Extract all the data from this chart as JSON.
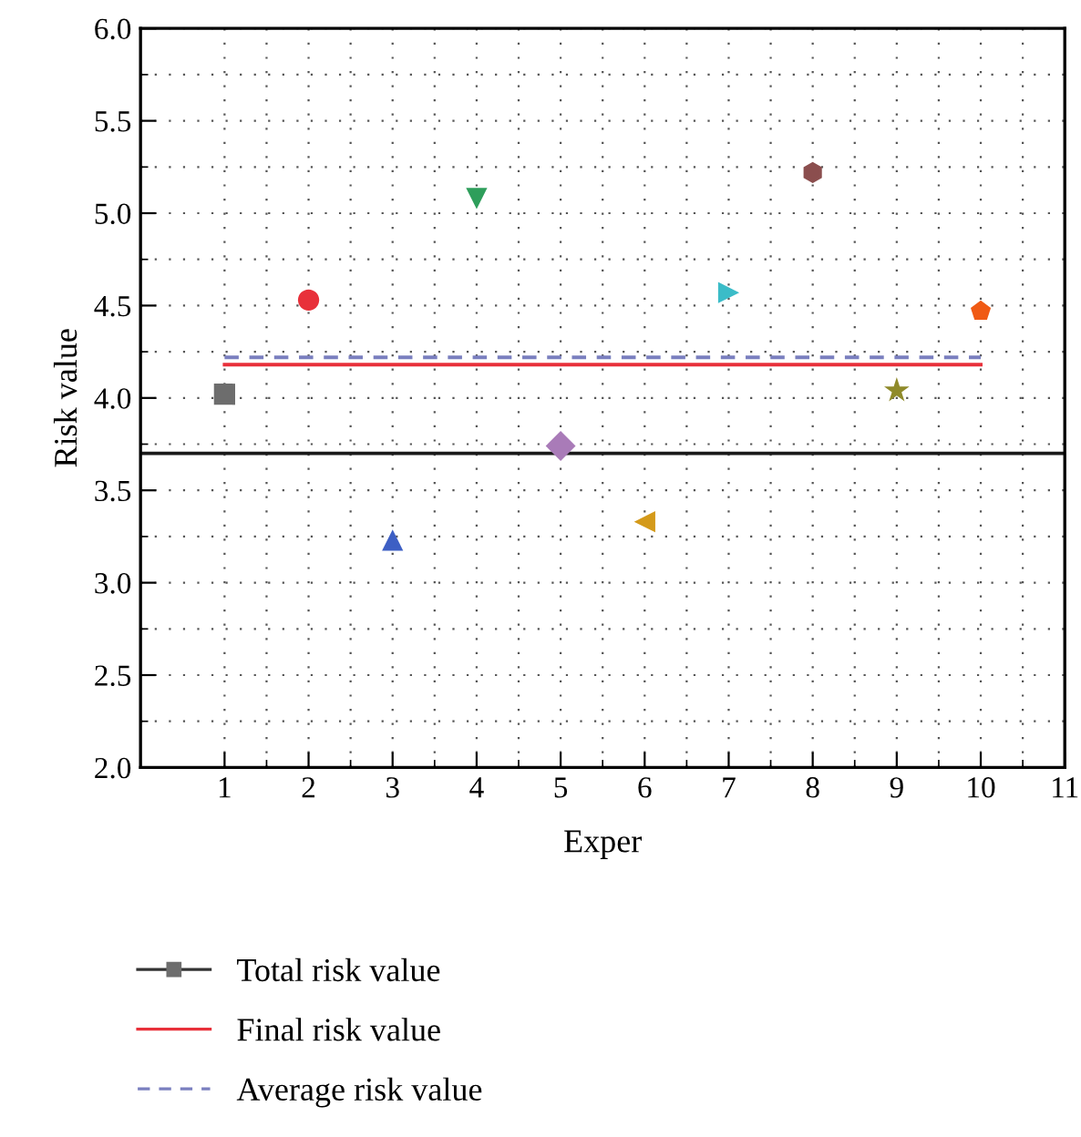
{
  "chart_data": {
    "type": "scatter",
    "xlabel": "Exper",
    "ylabel": "Risk value",
    "xlim": [
      0,
      11
    ],
    "xticks": [
      1,
      2,
      3,
      4,
      5,
      6,
      7,
      8,
      9,
      10,
      11
    ],
    "ylim": [
      2.0,
      6.0
    ],
    "yticks": [
      {
        "value": 2.0,
        "label": "2.0"
      },
      {
        "value": 2.5,
        "label": "2.5"
      },
      {
        "value": 3.0,
        "label": "3.0"
      },
      {
        "value": 3.5,
        "label": "3.5"
      },
      {
        "value": 4.0,
        "label": "4.0"
      },
      {
        "value": 4.5,
        "label": "4.5"
      },
      {
        "value": 5.0,
        "label": "5.0"
      },
      {
        "value": 5.5,
        "label": "5.5"
      },
      {
        "value": 6.0,
        "label": "6.0"
      }
    ],
    "grid": true,
    "legend": "bottom",
    "series": [
      {
        "name": "Total risk value",
        "color": "#6d6d6d",
        "x": [
          1,
          2,
          3,
          4,
          5,
          6,
          7,
          8,
          9,
          10
        ],
        "values": [
          4.02,
          4.53,
          3.23,
          5.08,
          3.74,
          3.33,
          4.57,
          5.22,
          4.04,
          4.47
        ],
        "colors": [
          "#6d6d6d",
          "#e8303a",
          "#3d5fc4",
          "#2e9e5b",
          "#a97bb8",
          "#d49a1a",
          "#3bbcc8",
          "#8b4e4e",
          "#8f8a2a",
          "#f05a14"
        ],
        "marker": [
          "square",
          "circle",
          "triangle",
          "triangle-down",
          "diamond",
          "triangle-left",
          "triangle-right",
          "hexagon",
          "star",
          "pentagon"
        ]
      },
      {
        "name": "Final risk value",
        "type": "line",
        "color": "#e8303a",
        "x": [
          1,
          10
        ],
        "values": [
          4.18,
          4.18
        ],
        "line_style": "solid"
      },
      {
        "name": "Average risk value",
        "type": "line",
        "color": "#7a7fbf",
        "x": [
          1,
          10
        ],
        "values": [
          4.22,
          4.22
        ],
        "line_style": "dashed"
      }
    ],
    "ref_lines": [
      {
        "axis": "y",
        "value": 3.7,
        "label": null,
        "color": "#1a1a1a"
      }
    ]
  }
}
